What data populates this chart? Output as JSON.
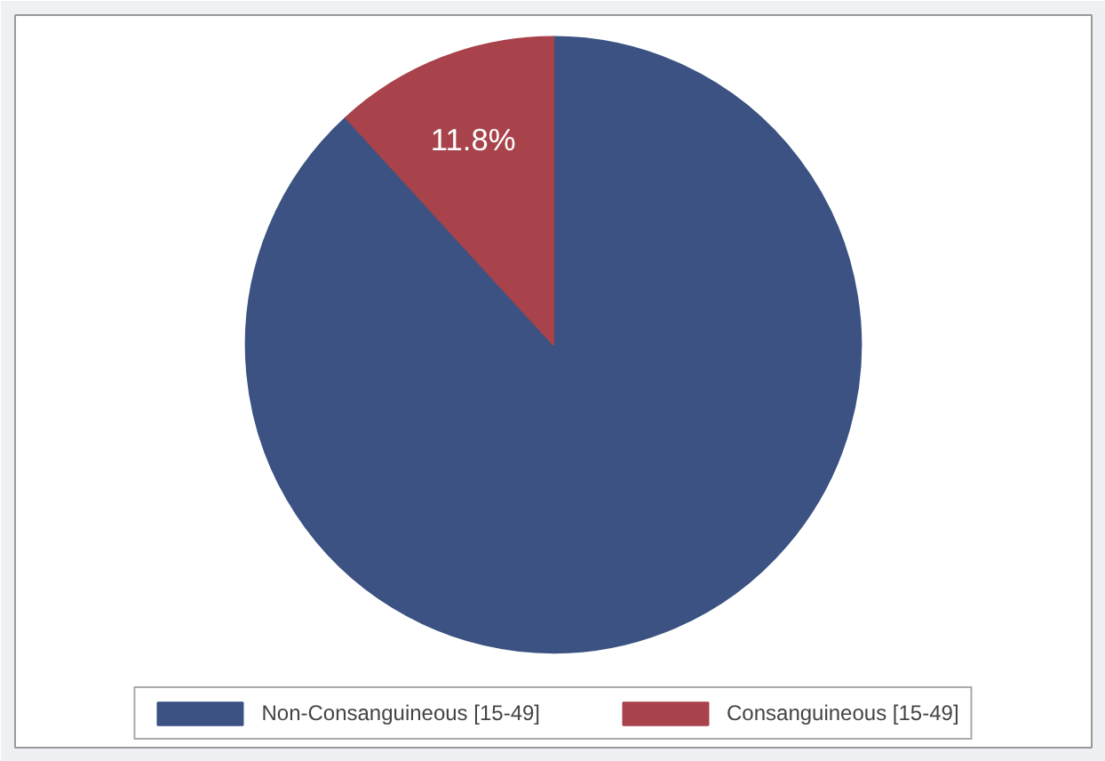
{
  "chart_data": {
    "type": "pie",
    "categories": [
      "Non-Consanguineous [15-49]",
      "Consanguineous [15-49]"
    ],
    "values": [
      88.2,
      11.8
    ],
    "colors": [
      "#3b5282",
      "#a8434b"
    ],
    "value_labels": [
      null,
      "11.8%"
    ],
    "legend": "bottom"
  }
}
